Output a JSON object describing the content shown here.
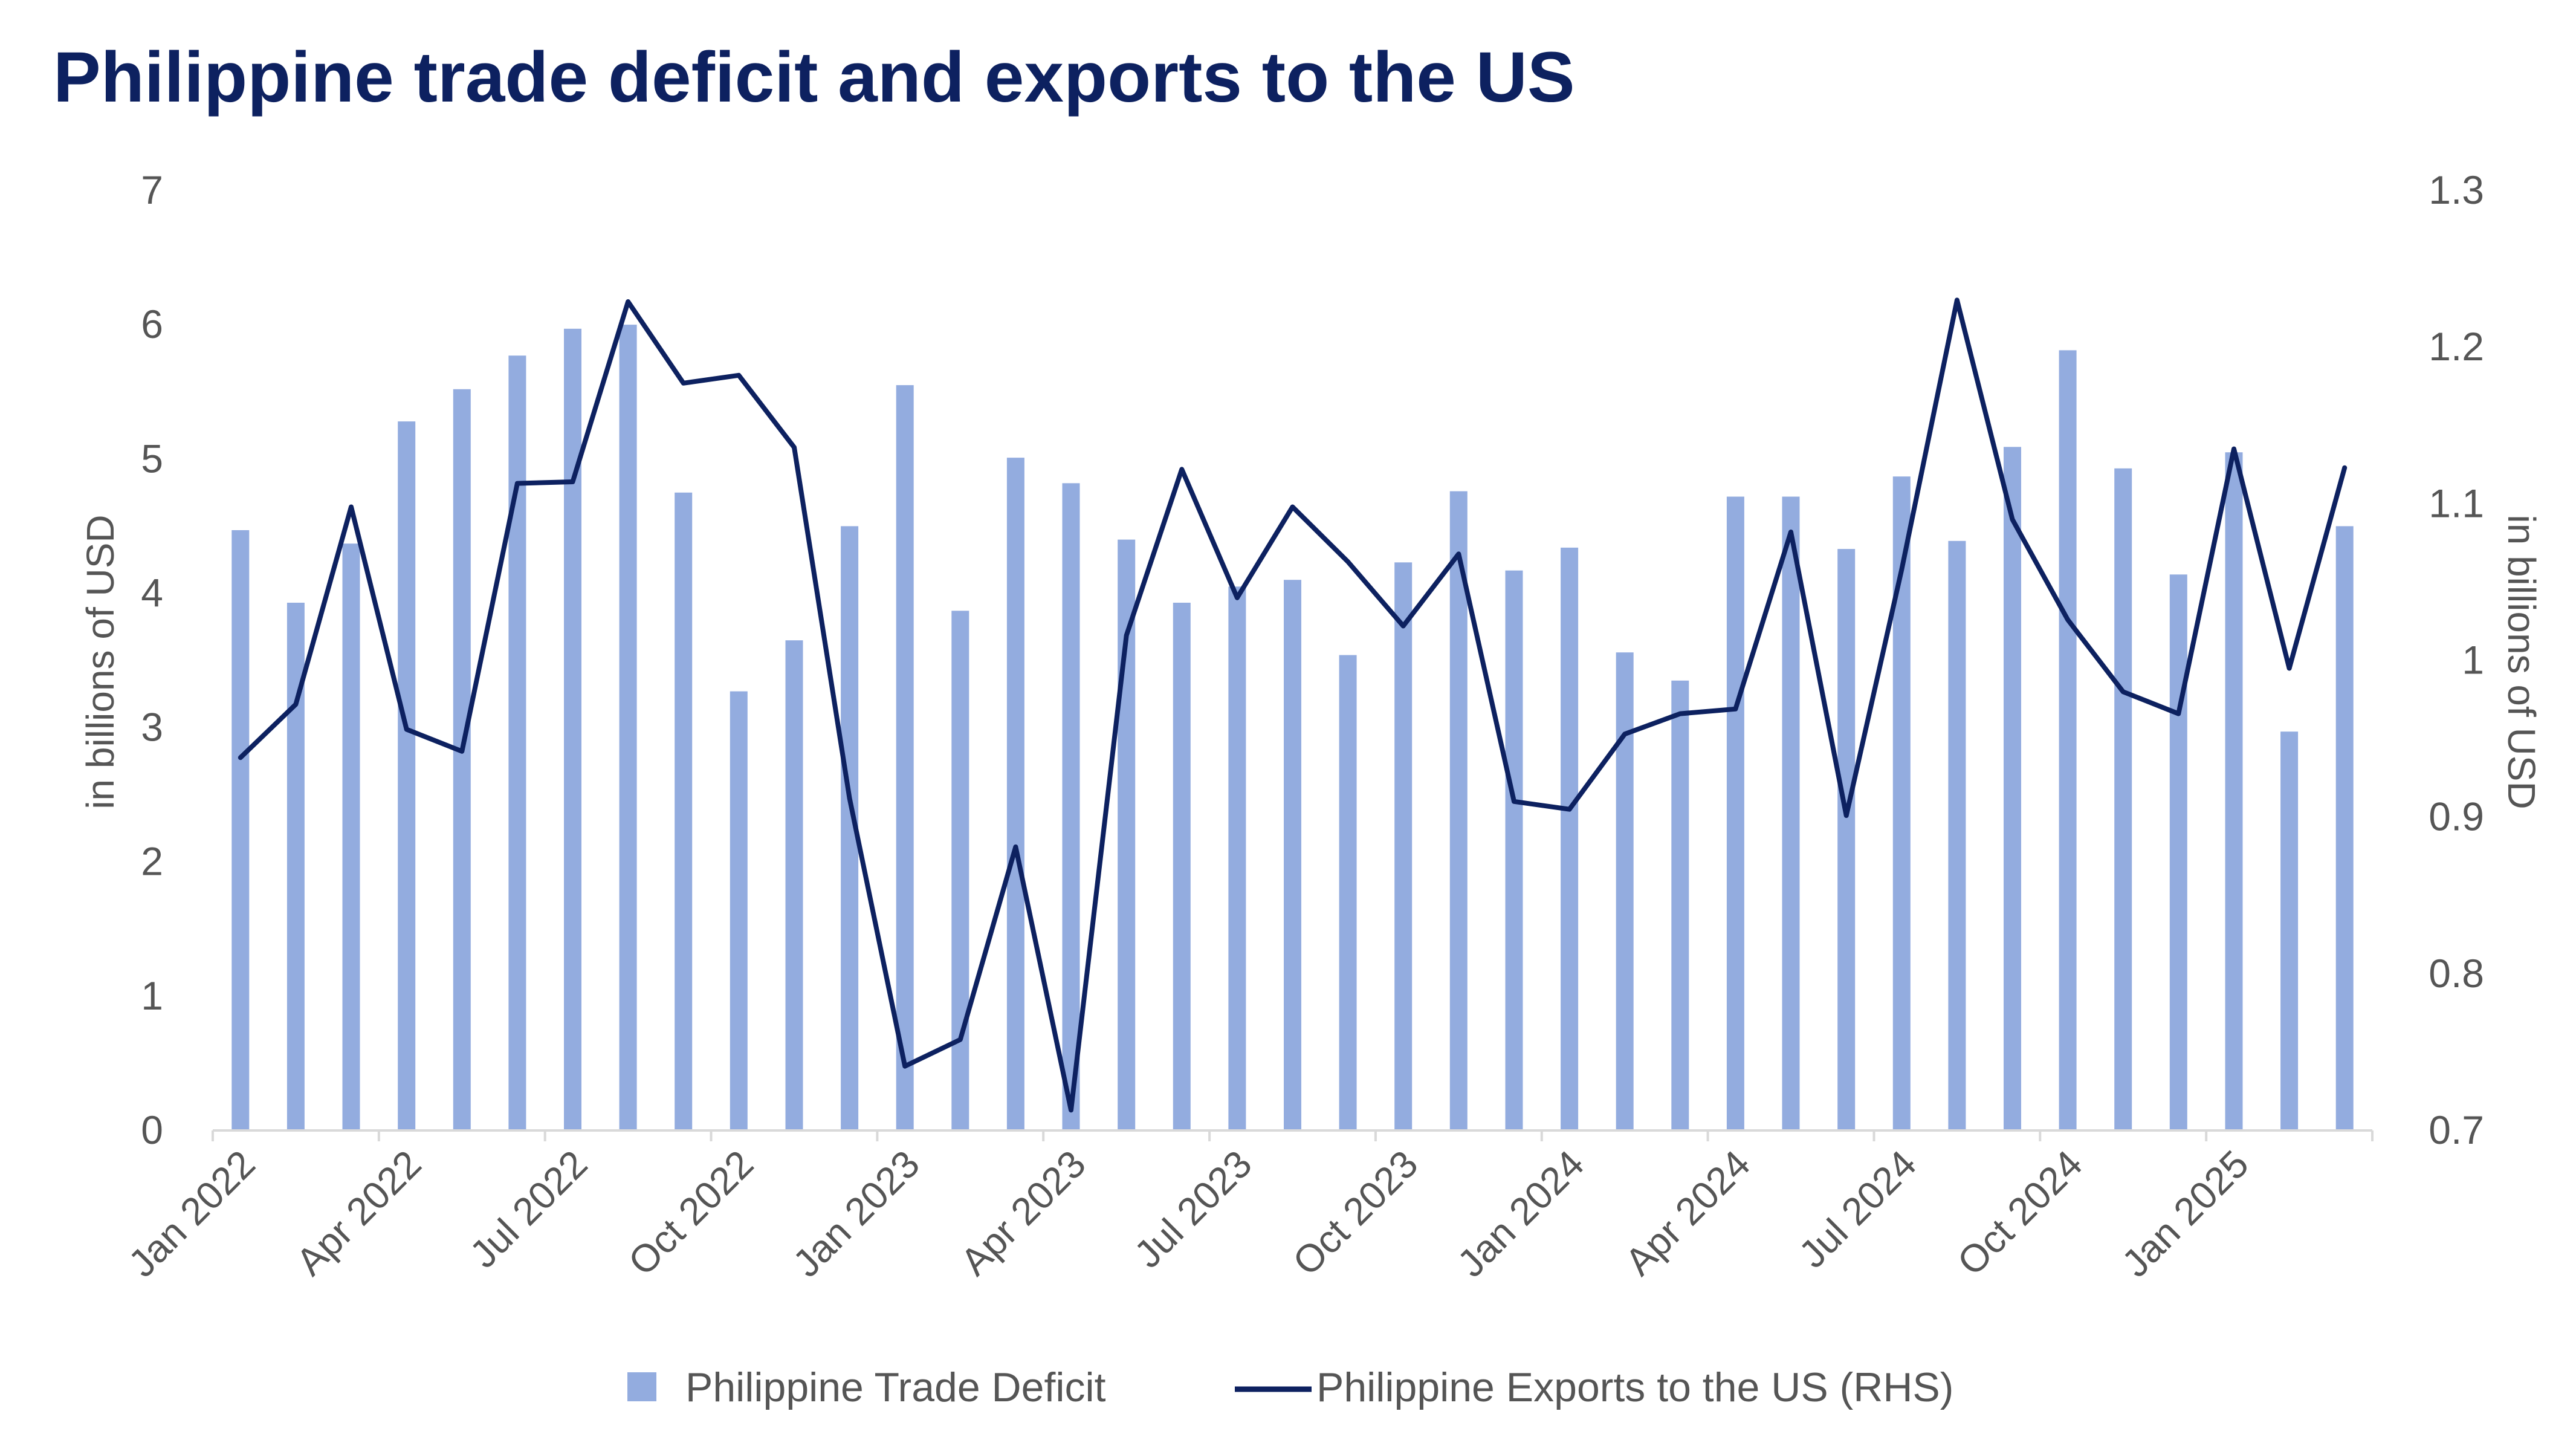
{
  "chart_data": {
    "type": "bar",
    "title": "Philippine trade deficit and exports to the US",
    "xlabel": "",
    "ylabel": "in billions of USD",
    "y2label": "in billions of USD",
    "ylim": [
      0,
      7
    ],
    "y2lim": [
      0.7,
      1.3
    ],
    "yticks": [
      "0",
      "1",
      "2",
      "3",
      "4",
      "5",
      "6",
      "7"
    ],
    "y2ticks": [
      "0.7",
      "0.8",
      "0.9",
      "1",
      "1.1",
      "1.2",
      "1.3"
    ],
    "tick_labels": [
      "Jan 2022",
      "Apr 2022",
      "Jul 2022",
      "Oct 2022",
      "Jan 2023",
      "Apr 2023",
      "Jul 2023",
      "Oct 2023",
      "Jan 2024",
      "Apr 2024",
      "Jul 2024",
      "Oct 2024",
      "Jan 2025"
    ],
    "categories": [
      "Jan 2022",
      "Feb 2022",
      "Mar 2022",
      "Apr 2022",
      "May 2022",
      "Jun 2022",
      "Jul 2022",
      "Aug 2022",
      "Sep 2022",
      "Oct 2022",
      "Nov 2022",
      "Dec 2022",
      "Jan 2023",
      "Feb 2023",
      "Mar 2023",
      "Apr 2023",
      "May 2023",
      "Jun 2023",
      "Jul 2023",
      "Aug 2023",
      "Sep 2023",
      "Oct 2023",
      "Nov 2023",
      "Dec 2023",
      "Jan 2024",
      "Feb 2024",
      "Mar 2024",
      "Apr 2024",
      "May 2024",
      "Jun 2024",
      "Jul 2024",
      "Aug 2024",
      "Sep 2024",
      "Oct 2024",
      "Nov 2024",
      "Dec 2024",
      "Jan 2025",
      "Feb 2025",
      "Mar 2025"
    ],
    "series": [
      {
        "name": "Philippine Trade Deficit",
        "type": "bar",
        "axis": "left",
        "color": "#93acdf",
        "values": [
          4.47,
          3.93,
          4.37,
          5.28,
          5.52,
          5.77,
          5.97,
          6.0,
          4.75,
          3.27,
          3.65,
          4.5,
          5.55,
          3.87,
          5.01,
          4.82,
          4.4,
          3.93,
          4.05,
          4.1,
          3.54,
          4.23,
          4.76,
          4.17,
          4.34,
          3.56,
          3.35,
          4.72,
          4.72,
          4.33,
          4.87,
          4.39,
          5.09,
          5.81,
          4.93,
          4.14,
          5.05,
          2.97,
          4.5
        ]
      },
      {
        "name": "Philippine Exports to the US (RHS)",
        "type": "line",
        "axis": "right",
        "color": "#0d2160",
        "values": [
          0.938,
          0.972,
          1.098,
          0.956,
          0.942,
          1.113,
          1.114,
          1.229,
          1.177,
          1.182,
          1.136,
          0.912,
          0.741,
          0.758,
          0.881,
          0.713,
          1.016,
          1.122,
          1.04,
          1.098,
          1.063,
          1.022,
          1.068,
          0.91,
          0.905,
          0.953,
          0.966,
          0.969,
          1.082,
          0.901,
          1.058,
          1.23,
          1.09,
          1.026,
          0.98,
          0.966,
          1.135,
          0.995,
          1.123
        ]
      }
    ],
    "legend": {
      "position": "bottom",
      "items": [
        "Philippine Trade Deficit",
        "Philippine Exports to the US (RHS)"
      ]
    },
    "colors": {
      "title": "#0d2160",
      "axis_text": "#555555",
      "axis_line": "#d9d9d9"
    }
  }
}
